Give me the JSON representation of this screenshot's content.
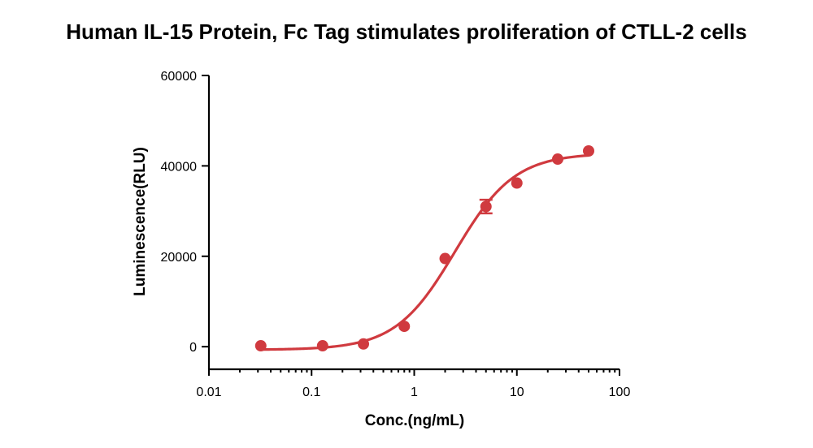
{
  "chart_data": {
    "type": "scatter",
    "title": "Human IL-15 Protein, Fc Tag stimulates proliferation of CTLL-2 cells",
    "xlabel": "Conc.(ng/mL)",
    "ylabel": "Luminescence(RLU)",
    "x_scale": "log",
    "xlim": [
      0.01,
      100
    ],
    "ylim": [
      -5000,
      60000
    ],
    "x_ticks": [
      0.01,
      0.1,
      1,
      10,
      100
    ],
    "x_tick_labels": [
      "0.01",
      "0.1",
      "1",
      "10",
      "100"
    ],
    "y_ticks": [
      0,
      20000,
      40000,
      60000
    ],
    "y_tick_labels": [
      "0",
      "20000",
      "40000",
      "60000"
    ],
    "grid": false,
    "series": [
      {
        "color": "#d03a3f",
        "x": [
          0.032,
          0.128,
          0.32,
          0.8,
          2,
          5,
          10,
          25,
          50
        ],
        "y": [
          200,
          200,
          600,
          4500,
          19500,
          31000,
          36200,
          41500,
          43300
        ],
        "error": [
          0,
          0,
          0,
          0,
          0,
          1500,
          0,
          0,
          0
        ]
      }
    ],
    "fit_curve": {
      "model": "4PL",
      "bottom": -700,
      "top": 42800,
      "ec50": 2.5,
      "hill": 1.5,
      "color": "#d03a3f"
    }
  }
}
